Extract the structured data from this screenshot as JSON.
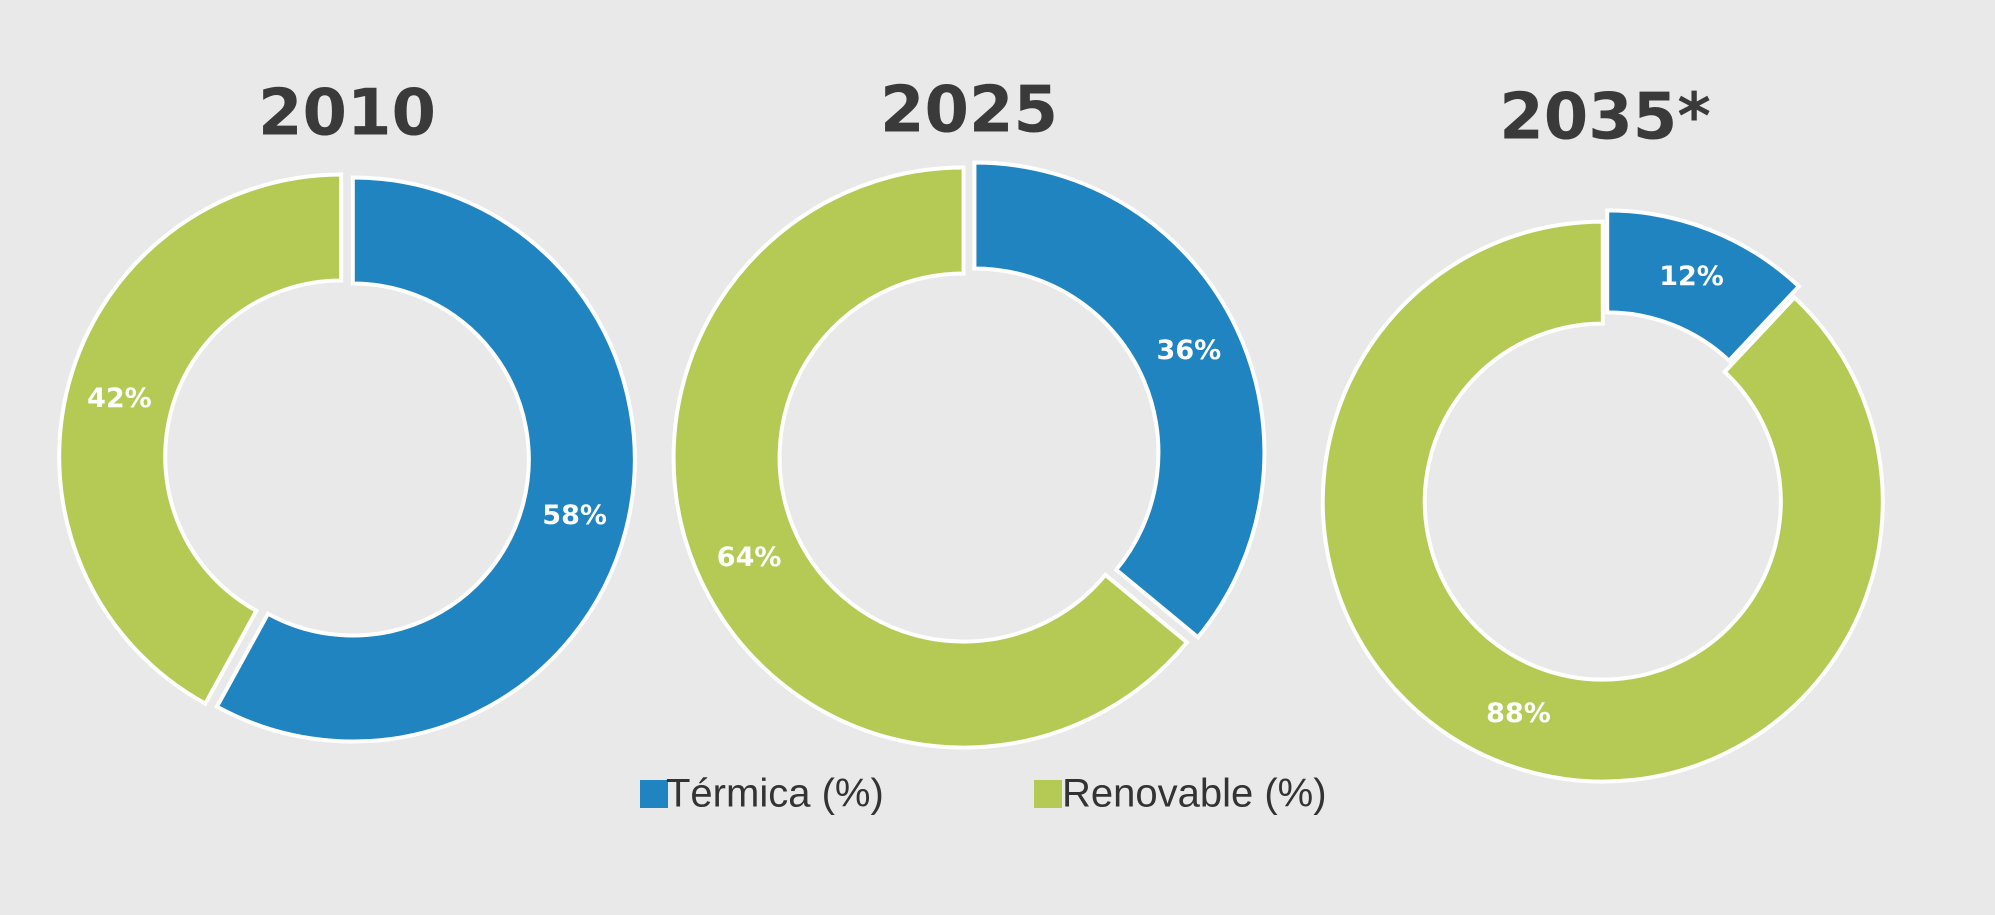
{
  "legend": {
    "labels": [
      "Térmica (%)",
      "Renovable (%)"
    ],
    "colors": [
      "#1f84c0",
      "#b5ca55"
    ]
  },
  "chart_data": [
    {
      "type": "donut",
      "title": "2010",
      "values": [
        58,
        42
      ],
      "value_labels": [
        "58%",
        "42%"
      ]
    },
    {
      "type": "donut",
      "title": "2025",
      "values": [
        36,
        64
      ],
      "value_labels": [
        "36%",
        "64%"
      ]
    },
    {
      "type": "donut",
      "title": "2035*",
      "values": [
        12,
        88
      ],
      "value_labels": [
        "12%",
        "88%"
      ]
    }
  ]
}
